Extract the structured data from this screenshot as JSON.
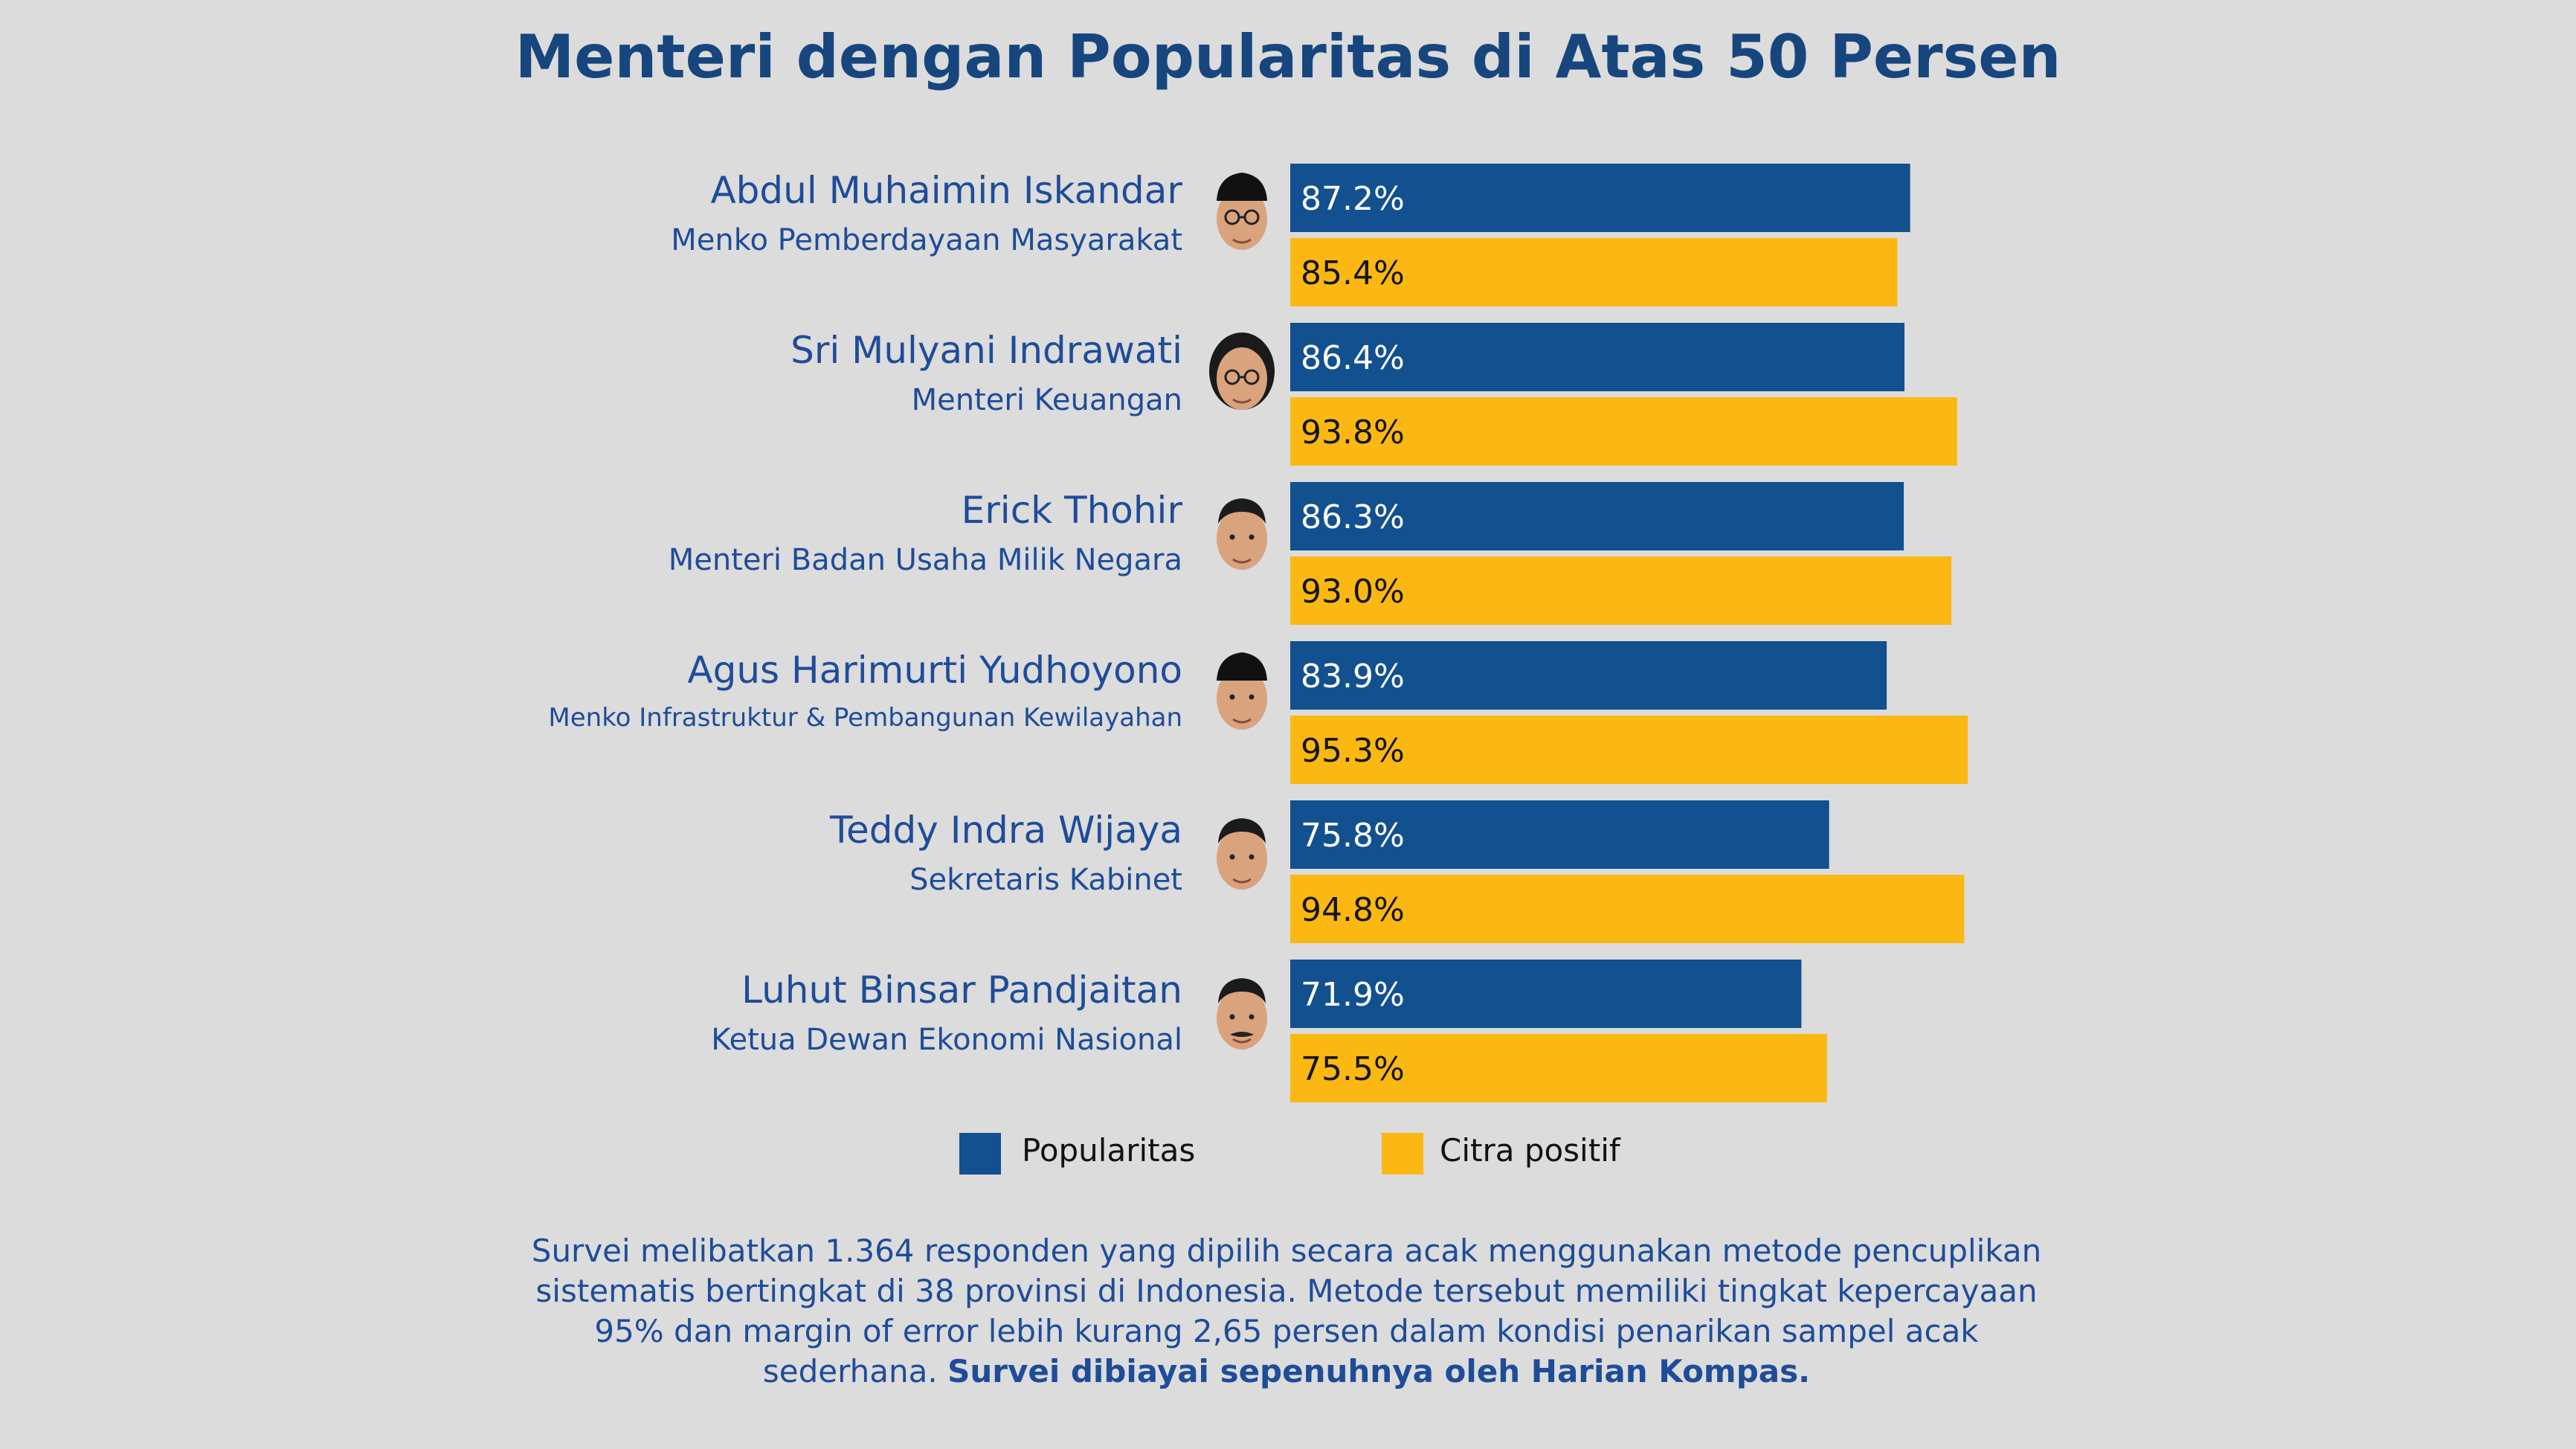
{
  "title": "Menteri dengan Popularitas di Atas 50 Persen",
  "colors": {
    "popularitas": "#12508f",
    "citra_positif": "#fbb812",
    "text_blue": "#1e4c99",
    "title_blue": "#17467e",
    "background": "#dcdcdc"
  },
  "rows": [
    {
      "name": "Abdul Muhaimin Iskandar",
      "role": "Menko Pemberdayaan Masyarakat",
      "avatar_icon": "person-with-peci-and-glasses-icon"
    },
    {
      "name": "Sri Mulyani Indrawati",
      "role": "Menteri Keuangan",
      "avatar_icon": "woman-with-glasses-icon"
    },
    {
      "name": "Erick Thohir",
      "role": "Menteri Badan Usaha Milik Negara",
      "avatar_icon": "man-portrait-icon"
    },
    {
      "name": "Agus Harimurti Yudhoyono",
      "role": "Menko Infrastruktur & Pembangunan Kewilayahan",
      "avatar_icon": "person-with-peci-icon"
    },
    {
      "name": "Teddy Indra Wijaya",
      "role": "Sekretaris Kabinet",
      "avatar_icon": "young-man-portrait-icon"
    },
    {
      "name": "Luhut Binsar Pandjaitan",
      "role": "Ketua Dewan Ekonomi Nasional",
      "avatar_icon": "man-with-mustache-icon"
    }
  ],
  "chart_data": {
    "type": "bar",
    "orientation": "horizontal",
    "categories": [
      "Abdul Muhaimin Iskandar",
      "Sri Mulyani Indrawati",
      "Erick Thohir",
      "Agus Harimurti Yudhoyono",
      "Teddy Indra Wijaya",
      "Luhut Binsar Pandjaitan"
    ],
    "series": [
      {
        "name": "Popularitas",
        "values": [
          87.2,
          86.4,
          86.3,
          83.9,
          75.8,
          71.9
        ],
        "labels": [
          "87.2%",
          "86.4%",
          "86.3%",
          "83.9%",
          "75.8%",
          "71.9%"
        ]
      },
      {
        "name": "Citra positif",
        "values": [
          85.4,
          93.8,
          93.0,
          95.3,
          94.8,
          75.5
        ],
        "labels": [
          "85.4%",
          "93.8%",
          "93.0%",
          "95.3%",
          "94.8%",
          "75.5%"
        ]
      }
    ],
    "xlim": [
      0,
      100
    ],
    "grid": false,
    "legend": "bottom"
  },
  "legend": {
    "popularitas": "Popularitas",
    "citra_positif": "Citra positif"
  },
  "footnote": {
    "text": "Survei melibatkan 1.364 responden yang dipilih secara acak menggunakan metode pencuplikan sistematis bertingkat di 38 provinsi di Indonesia. Metode tersebut memiliki tingkat kepercayaan 95% dan margin of error lebih kurang 2,65 persen dalam kondisi penarikan sampel acak sederhana.",
    "bold": "Survei dibiayai sepenuhnya oleh Harian Kompas."
  }
}
